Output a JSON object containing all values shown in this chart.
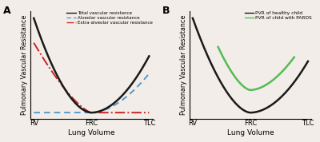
{
  "panel_A": {
    "label": "A",
    "xlabel": "Lung Volume",
    "ylabel": "Pulmonary Vascular Resistance",
    "xticks_labels": [
      "RV",
      "FRC",
      "TLC"
    ],
    "xticks_pos": [
      0.0,
      0.5,
      1.0
    ],
    "legend": [
      {
        "label": "Total vascular resistance",
        "color": "#1a1a1a",
        "linestyle": "solid"
      },
      {
        "label": "Alveolar vascular resistance",
        "color": "#5599cc",
        "linestyle": "dashed"
      },
      {
        "label": "Extra-alveolar vascular resistance",
        "color": "#cc2222",
        "linestyle": "dashdot"
      }
    ]
  },
  "panel_B": {
    "label": "B",
    "xlabel": "Lung Volume",
    "ylabel": "Pulmonary Vascular Resistance",
    "xticks_labels": [
      "RV",
      "FRC",
      "TLC"
    ],
    "xticks_pos": [
      0.0,
      0.5,
      1.0
    ],
    "legend": [
      {
        "label": "PVR of healthy child",
        "color": "#1a1a1a",
        "linestyle": "solid"
      },
      {
        "label": "PVR of child with PARDS",
        "color": "#55bb55",
        "linestyle": "solid"
      }
    ]
  },
  "background_color": "#f2ede8",
  "frc": 0.5
}
